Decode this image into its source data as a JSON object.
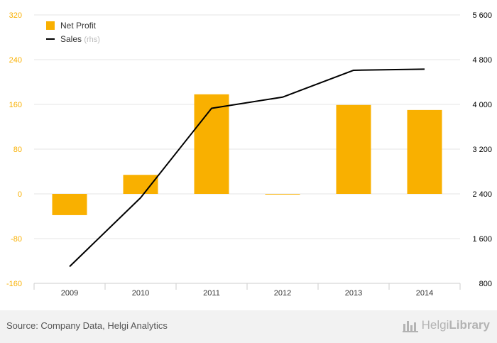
{
  "chart_data": {
    "type": "bar",
    "categories": [
      "2009",
      "2010",
      "2011",
      "2012",
      "2013",
      "2014"
    ],
    "series": [
      {
        "name": "Net Profit",
        "kind": "bar",
        "axis": "left",
        "color": "#f9b000",
        "values": [
          -38,
          34,
          178,
          -1,
          159,
          150
        ]
      },
      {
        "name": "Sales",
        "name_suffix": "(rhs)",
        "kind": "line",
        "axis": "right",
        "color": "#000000",
        "values": [
          1100,
          2330,
          3930,
          4130,
          4610,
          4630
        ]
      }
    ],
    "ylim_left": [
      -160,
      320
    ],
    "yticks_left": [
      "-160",
      "-80",
      "0",
      "80",
      "160",
      "240",
      "320"
    ],
    "ylim_right": [
      800,
      5600
    ],
    "yticks_right": [
      "800",
      "1 600",
      "2 400",
      "3 200",
      "4 000",
      "4 800",
      "5 600"
    ],
    "legend_position": "top-left",
    "grid": true,
    "left_tick_color": "#f9b000",
    "right_tick_color": "#000000"
  },
  "footer": {
    "source": "Source: Company Data, Helgi Analytics",
    "brand_a": "Helgi",
    "brand_b": "Library",
    "brand_icon": "helgi-library-logo-icon"
  }
}
